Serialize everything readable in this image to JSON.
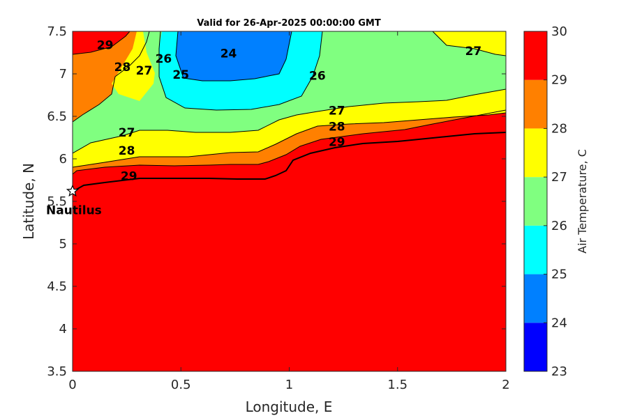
{
  "chart_data": {
    "type": "contour",
    "title": "Valid for 26-Apr-2025 00:00:00 GMT",
    "xlabel": "Longitude, E",
    "ylabel": "Latitude, N",
    "xlim": [
      0,
      2
    ],
    "ylim": [
      3.5,
      7.5
    ],
    "x_ticks": [
      0,
      0.5,
      1,
      1.5,
      2
    ],
    "x_tick_labels": [
      "0",
      "0.5",
      "1",
      "1.5",
      "2"
    ],
    "y_ticks": [
      3.5,
      4,
      4.5,
      5,
      5.5,
      6,
      6.5,
      7,
      7.5
    ],
    "y_tick_labels": [
      "3.5",
      "4",
      "4.5",
      "5",
      "5.5",
      "6",
      "6.5",
      "7",
      "7.5"
    ],
    "colorbar": {
      "label": "Air Temperature, C",
      "range": [
        23,
        30
      ],
      "ticks": [
        23,
        24,
        25,
        26,
        27,
        28,
        29,
        30
      ],
      "tick_labels": [
        "23",
        "24",
        "25",
        "26",
        "27",
        "28",
        "29",
        "30"
      ],
      "levels": [
        {
          "min": 23,
          "max": 24,
          "color": "#0000ff"
        },
        {
          "min": 24,
          "max": 25,
          "color": "#0080ff"
        },
        {
          "min": 25,
          "max": 26,
          "color": "#00ffff"
        },
        {
          "min": 26,
          "max": 27,
          "color": "#80ff80"
        },
        {
          "min": 27,
          "max": 28,
          "color": "#ffff00"
        },
        {
          "min": 28,
          "max": 29,
          "color": "#ff8000"
        },
        {
          "min": 29,
          "max": 30,
          "color": "#ff0000"
        },
        {
          "min": 30,
          "max": 31,
          "color": "#800000"
        }
      ]
    },
    "contour_lines": [
      {
        "level": 29,
        "points": [
          [
            0,
            5.72
          ],
          [
            0.3,
            5.78
          ],
          [
            0.6,
            5.77
          ],
          [
            0.9,
            5.76
          ],
          [
            1.0,
            5.9
          ],
          [
            1.2,
            6.05
          ],
          [
            1.5,
            6.15
          ],
          [
            2.0,
            6.3
          ]
        ]
      },
      {
        "level": 28,
        "points": [
          [
            0,
            5.9
          ],
          [
            0.2,
            5.97
          ],
          [
            0.5,
            6.0
          ],
          [
            0.9,
            5.98
          ],
          [
            1.1,
            6.15
          ],
          [
            1.5,
            6.38
          ],
          [
            2.0,
            6.45
          ]
        ]
      },
      {
        "level": 27,
        "points": [
          [
            0,
            6.06
          ],
          [
            0.2,
            6.2
          ],
          [
            0.6,
            6.1
          ],
          [
            0.9,
            6.12
          ],
          [
            1.1,
            6.5
          ],
          [
            1.5,
            6.7
          ],
          [
            2.0,
            6.95
          ]
        ]
      },
      {
        "level": 26,
        "points": [
          [
            0,
            6.35
          ],
          [
            0.2,
            6.4
          ],
          [
            0.3,
            7.0
          ],
          [
            0.42,
            7.5
          ]
        ]
      },
      {
        "level": 26,
        "points": [
          [
            0.45,
            7.5
          ],
          [
            0.42,
            7.0
          ],
          [
            0.7,
            6.6
          ],
          [
            1.0,
            6.7
          ],
          [
            1.1,
            7.2
          ],
          [
            1.14,
            7.5
          ]
        ]
      },
      {
        "level": 25,
        "points": [
          [
            0.52,
            7.5
          ],
          [
            0.5,
            7.0
          ],
          [
            0.85,
            7.05
          ],
          [
            0.98,
            7.5
          ]
        ]
      }
    ],
    "contour_labels": [
      {
        "text": "29",
        "x": 0.15,
        "y": 7.34
      },
      {
        "text": "28",
        "x": 0.23,
        "y": 7.08
      },
      {
        "text": "27",
        "x": 0.33,
        "y": 7.04
      },
      {
        "text": "26",
        "x": 0.42,
        "y": 7.18
      },
      {
        "text": "24",
        "x": 0.72,
        "y": 7.24
      },
      {
        "text": "25",
        "x": 0.5,
        "y": 6.99
      },
      {
        "text": "26",
        "x": 1.13,
        "y": 6.98
      },
      {
        "text": "27",
        "x": 1.85,
        "y": 7.27
      },
      {
        "text": "27",
        "x": 1.22,
        "y": 6.57
      },
      {
        "text": "28",
        "x": 1.22,
        "y": 6.38
      },
      {
        "text": "29",
        "x": 1.22,
        "y": 6.2
      },
      {
        "text": "27",
        "x": 0.25,
        "y": 6.31
      },
      {
        "text": "28",
        "x": 0.25,
        "y": 6.1
      },
      {
        "text": "29",
        "x": 0.26,
        "y": 5.8
      }
    ],
    "markers": [
      {
        "name": "Nautilus",
        "x": 0.0,
        "y": 5.62,
        "symbol": "star"
      }
    ]
  }
}
